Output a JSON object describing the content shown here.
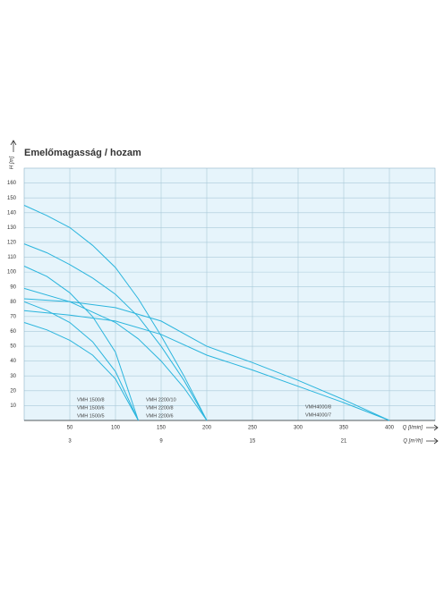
{
  "chart_data": {
    "type": "line",
    "title": "Emelőmagasság / hozam",
    "y_label": "H [m]",
    "x_label": "Q [l/min]",
    "x2_label": "Q [m³/h]",
    "xlim": [
      0,
      450
    ],
    "xticks": [
      50,
      100,
      150,
      200,
      250,
      300,
      350,
      400
    ],
    "x2lim": [
      0,
      27
    ],
    "x2ticks": [
      3,
      9,
      15,
      21
    ],
    "ylim": [
      0,
      170
    ],
    "yticks": [
      10,
      20,
      30,
      40,
      50,
      60,
      70,
      80,
      90,
      100,
      110,
      120,
      130,
      140,
      150,
      160
    ],
    "grid": true,
    "series": [
      {
        "name": "VMH 1500/8",
        "color": "#2bb5dd",
        "x": [
          0,
          25,
          50,
          75,
          100,
          125
        ],
        "values": [
          104,
          97,
          86,
          70,
          46,
          0
        ]
      },
      {
        "name": "VMH 1500/6",
        "color": "#2bb5dd",
        "x": [
          0,
          25,
          50,
          75,
          100,
          125
        ],
        "values": [
          80,
          74,
          66,
          53,
          33,
          0
        ]
      },
      {
        "name": "VMH 1500/5",
        "color": "#2bb5dd",
        "x": [
          0,
          25,
          50,
          75,
          100,
          125
        ],
        "values": [
          66,
          61,
          54,
          44,
          28,
          0
        ]
      },
      {
        "name": "VMH 2200/10",
        "color": "#2bb5dd",
        "x": [
          0,
          25,
          50,
          75,
          100,
          125,
          150,
          175,
          200
        ],
        "values": [
          145,
          138,
          130,
          118,
          103,
          82,
          57,
          30,
          0
        ]
      },
      {
        "name": "VMH 2200/8",
        "color": "#2bb5dd",
        "x": [
          0,
          25,
          50,
          75,
          100,
          125,
          150,
          175,
          200
        ],
        "values": [
          119,
          113,
          105,
          96,
          85,
          70,
          50,
          27,
          0
        ]
      },
      {
        "name": "VMH 2200/6",
        "color": "#2bb5dd",
        "x": [
          0,
          50,
          100,
          125,
          150,
          175,
          200
        ],
        "values": [
          89,
          80,
          66,
          55,
          40,
          22,
          0
        ]
      },
      {
        "name": "VMH4000/8",
        "color": "#2bb5dd",
        "x": [
          0,
          50,
          100,
          150,
          200,
          250,
          300,
          350,
          400
        ],
        "values": [
          82,
          80,
          76,
          67,
          50,
          39,
          27,
          14,
          0
        ]
      },
      {
        "name": "VMH4000/7",
        "color": "#2bb5dd",
        "x": [
          0,
          50,
          100,
          150,
          200,
          250,
          300,
          350,
          400
        ],
        "values": [
          74,
          71,
          67,
          58,
          44,
          34,
          23,
          12,
          0
        ]
      }
    ]
  }
}
